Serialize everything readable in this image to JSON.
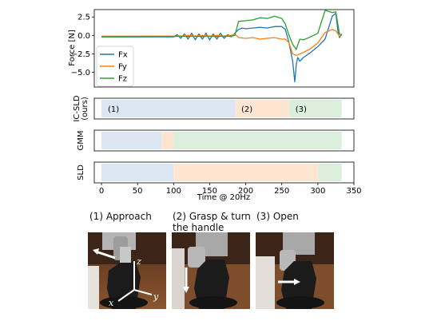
{
  "chart_data": [
    {
      "type": "line",
      "ylabel": "Force [N]",
      "xlim": [
        -10,
        350
      ],
      "ylim": [
        -7,
        3.5
      ],
      "yticks": [
        2.5,
        0.0,
        -2.5,
        -5.0
      ],
      "ytick_labels": [
        "2.5",
        "0.0",
        "−2.5",
        "−5.0"
      ],
      "legend": "lower-left",
      "series": [
        {
          "name": "Fx",
          "color": "#1f77b4",
          "x": [
            0,
            100,
            105,
            110,
            115,
            120,
            125,
            130,
            135,
            140,
            145,
            150,
            155,
            160,
            165,
            170,
            175,
            180,
            185,
            190,
            195,
            200,
            210,
            220,
            230,
            240,
            250,
            255,
            260,
            265,
            268,
            270,
            272,
            275,
            280,
            290,
            300,
            310,
            320,
            325,
            328,
            330,
            333
          ],
          "y": [
            -0.2,
            -0.2,
            0.1,
            -0.4,
            0.2,
            -0.5,
            0.3,
            -0.6,
            0.2,
            -0.5,
            0.3,
            -0.6,
            0.2,
            -0.5,
            0.3,
            -0.4,
            0.1,
            -0.2,
            0.3,
            0.8,
            1.0,
            0.9,
            1.0,
            1.1,
            1.0,
            1.2,
            1.2,
            0.8,
            -1.0,
            -3.5,
            -6.3,
            -4.0,
            -3.0,
            -3.5,
            -3.0,
            -2.3,
            -1.5,
            -0.5,
            2.6,
            3.0,
            0.5,
            -0.3,
            0.2
          ]
        },
        {
          "name": "Fy",
          "color": "#ff7f0e",
          "x": [
            0,
            100,
            110,
            120,
            130,
            140,
            150,
            160,
            170,
            180,
            185,
            190,
            200,
            210,
            220,
            230,
            240,
            250,
            255,
            260,
            265,
            270,
            280,
            290,
            300,
            310,
            320,
            325,
            330,
            333
          ],
          "y": [
            -0.1,
            -0.1,
            -0.1,
            0.0,
            -0.1,
            0.0,
            -0.1,
            0.0,
            -0.1,
            0.0,
            0.2,
            -0.3,
            -0.4,
            -0.3,
            -0.5,
            -0.4,
            -0.3,
            -0.5,
            -0.5,
            -1.0,
            -2.5,
            -2.7,
            -2.3,
            -1.8,
            -1.0,
            0.4,
            0.8,
            0.6,
            -0.1,
            0.0
          ]
        },
        {
          "name": "Fz",
          "color": "#2ca02c",
          "x": [
            0,
            100,
            110,
            120,
            130,
            140,
            150,
            160,
            170,
            180,
            185,
            190,
            200,
            210,
            220,
            230,
            240,
            250,
            255,
            260,
            265,
            270,
            275,
            280,
            290,
            300,
            310,
            320,
            325,
            330,
            333
          ],
          "y": [
            -0.2,
            -0.15,
            -0.1,
            -0.15,
            -0.1,
            -0.15,
            -0.1,
            -0.15,
            -0.1,
            -0.1,
            0.0,
            1.9,
            2.0,
            2.1,
            2.4,
            2.3,
            2.6,
            2.3,
            1.5,
            0.0,
            -1.2,
            -1.9,
            -0.5,
            -0.6,
            -0.2,
            0.3,
            3.4,
            3.1,
            3.2,
            0.2,
            0.0
          ]
        }
      ]
    },
    {
      "type": "bar",
      "ylabel": "IC-SLD\n(ours)",
      "xlim": [
        -10,
        350
      ],
      "segments": [
        {
          "label": "(1)",
          "start": 0,
          "end": 185,
          "color": "#dce6f3"
        },
        {
          "label": "(2)",
          "start": 185,
          "end": 260,
          "color": "#fde5d2"
        },
        {
          "label": "(3)",
          "start": 260,
          "end": 333,
          "color": "#dcefdc"
        }
      ]
    },
    {
      "type": "bar",
      "ylabel": "GMM",
      "xlim": [
        -10,
        350
      ],
      "segments": [
        {
          "start": 0,
          "end": 83,
          "color": "#dce6f3"
        },
        {
          "start": 83,
          "end": 100,
          "color": "#fde5d2"
        },
        {
          "start": 100,
          "end": 333,
          "color": "#dcefdc"
        }
      ]
    },
    {
      "type": "bar",
      "ylabel": "SLD",
      "xlabel": "Time @ 20Hz",
      "xlim": [
        -10,
        350
      ],
      "xticks": [
        0,
        50,
        100,
        150,
        200,
        250,
        300,
        350
      ],
      "segments": [
        {
          "start": 0,
          "end": 100,
          "color": "#dce6f3"
        },
        {
          "start": 100,
          "end": 300,
          "color": "#fde5d2"
        },
        {
          "start": 300,
          "end": 333,
          "color": "#dcefdc"
        }
      ]
    }
  ],
  "captions": [
    {
      "text": "(1) Approach"
    },
    {
      "text": "(2) Grasp & turn\nthe handle"
    },
    {
      "text": "(3) Open"
    }
  ],
  "photos": {
    "axis_labels": [
      "z",
      "y",
      "x"
    ]
  }
}
